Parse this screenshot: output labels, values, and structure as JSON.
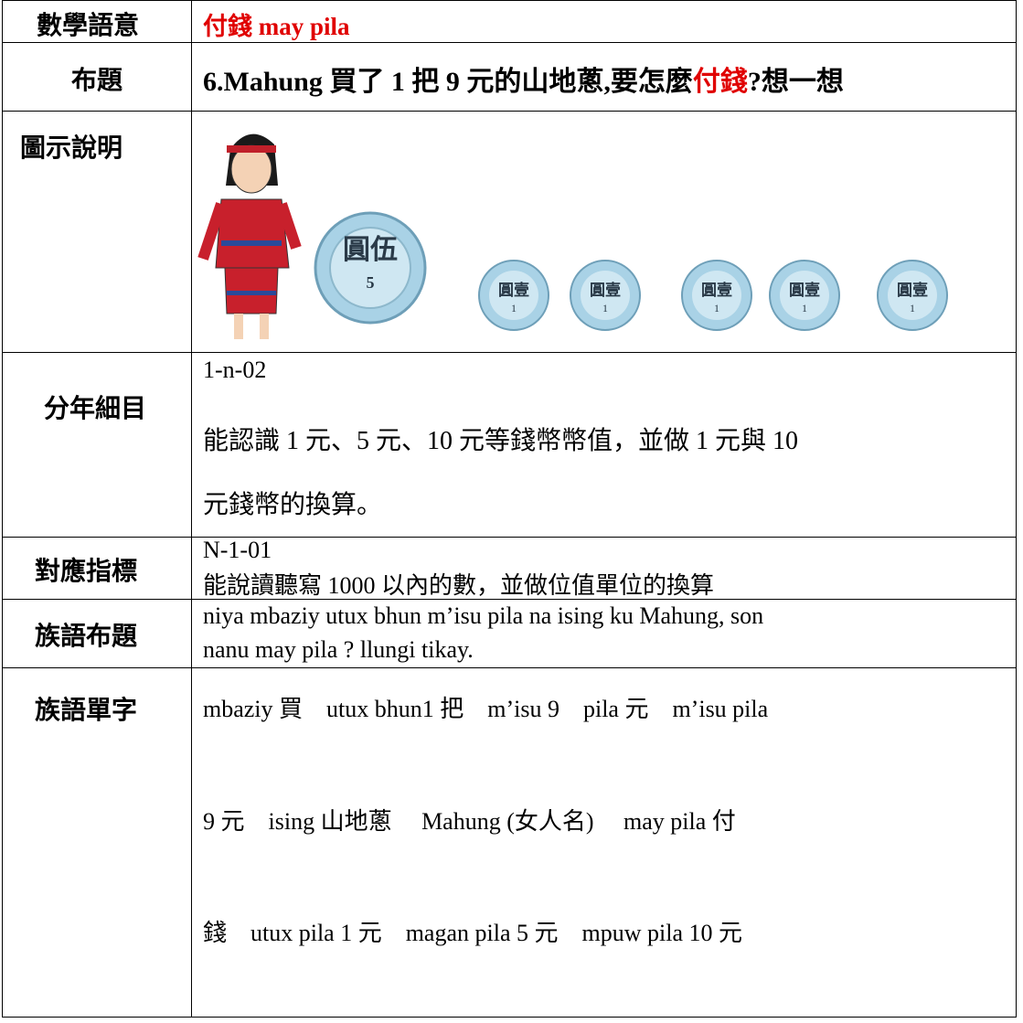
{
  "rows": [
    {
      "label": "數學語意",
      "content": [
        "付錢 may pila"
      ]
    },
    {
      "label": "布題",
      "content": [
        "6.Mahung 買了 1 把 9 元的山地蔥,要怎麼",
        "付錢",
        "?想一想"
      ]
    },
    {
      "label": "圖示說明",
      "content": []
    },
    {
      "label": "分年細目",
      "content": [
        "1-n-02",
        "能認識 1 元、5 元、10 元等錢幣幣值，並做 1 元與 10",
        "元錢幣的換算。"
      ]
    },
    {
      "label": "對應指標",
      "content": [
        "N-1-01",
        "能說讀聽寫 1000 以內的數，並做位值單位的換算"
      ]
    },
    {
      "label": "族語布題",
      "content": [
        "niya mbaziy utux bhun m’isu pila na ising ku Mahung, son",
        "nanu may pila ? llungi tikay."
      ]
    },
    {
      "label": "族語單字",
      "content": [
        "mbaziy 買　utux bhun1 把　m’isu 9　pila 元　m’isu pila",
        "9 元　ising  山地蔥　 Mahung (女人名)　 may pila 付",
        "錢　utux pila 1 元　magan pila 5 元　mpuw pila 10 元"
      ]
    }
  ],
  "figure": {
    "big_coin": [
      "圓伍",
      "5"
    ],
    "small_coin": [
      "圓壹",
      "1"
    ]
  }
}
